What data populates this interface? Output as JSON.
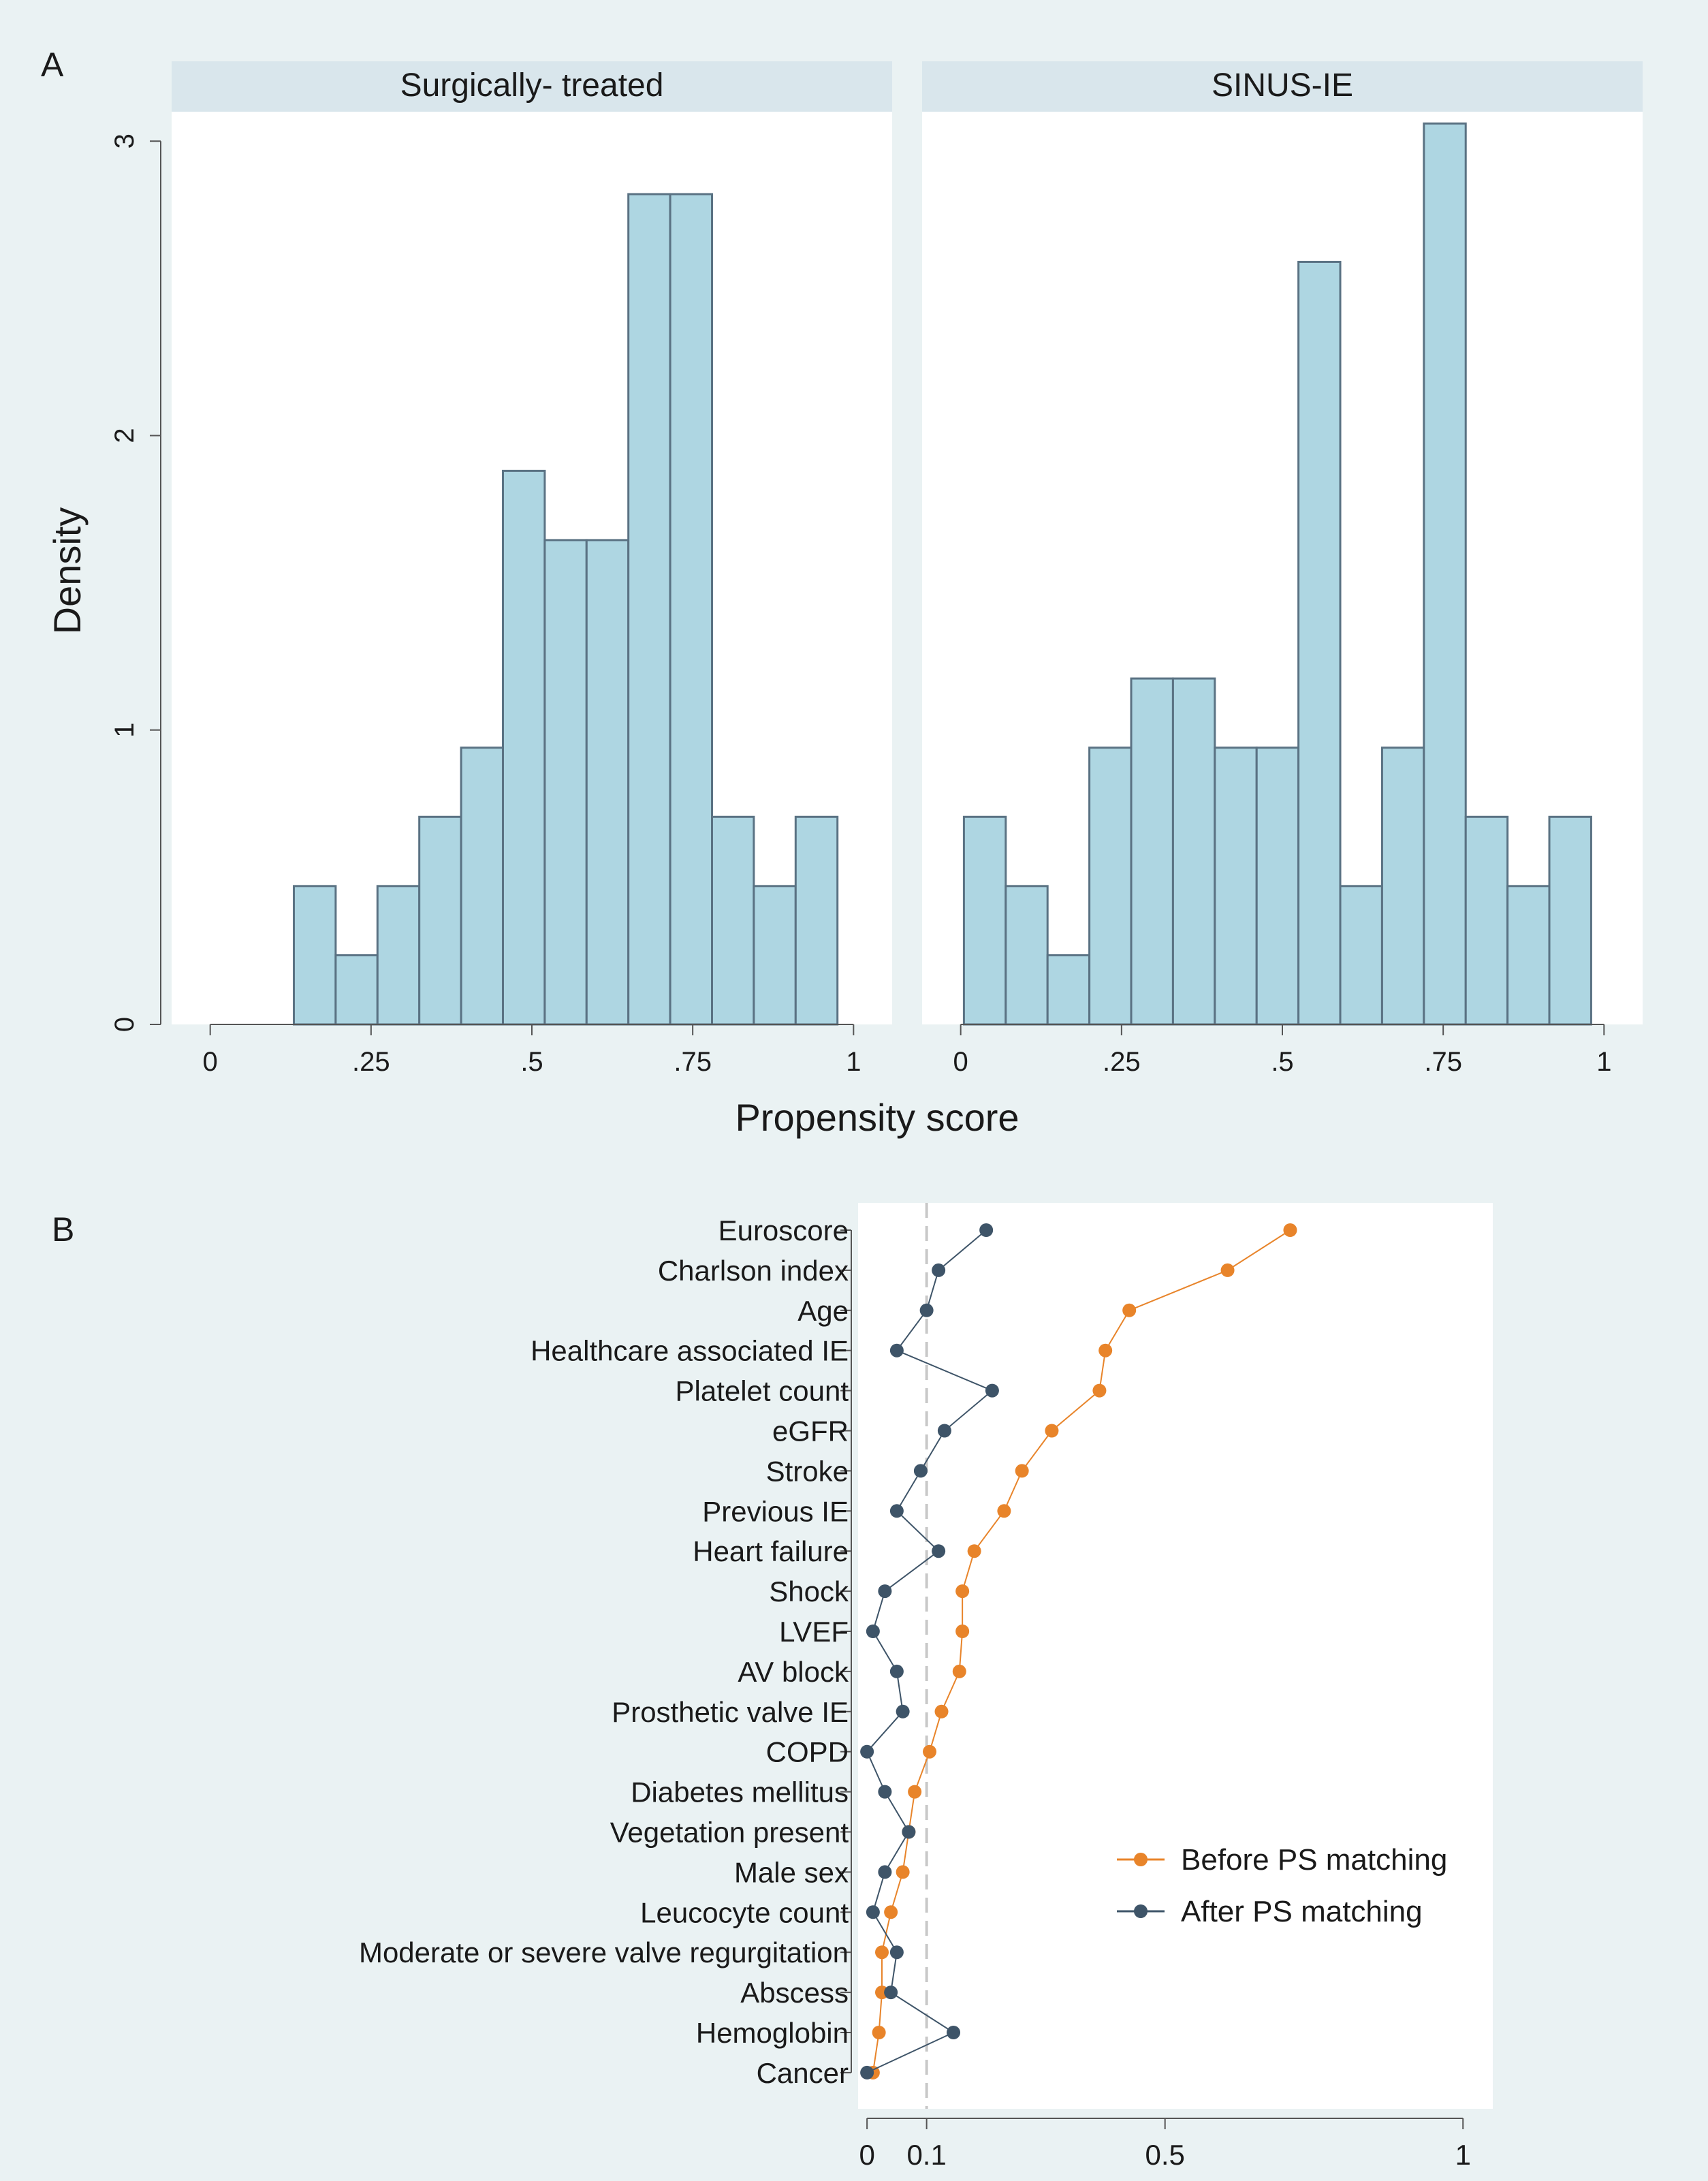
{
  "figure": {
    "panel_a_letter": "A",
    "panel_b_letter": "B",
    "colors": {
      "background": "#eaf2f3",
      "plot_bg": "#ffffff",
      "strip_bg": "#d9e6ec",
      "bar_fill": "#aed6e2",
      "bar_stroke": "#5a7283",
      "axis": "#555555",
      "before": "#e8842a",
      "after": "#3e5468",
      "ref_line": "#c8c8c8"
    }
  },
  "chart_data": [
    {
      "type": "histogram",
      "panel": "A",
      "ylabel": "Density",
      "xlabel": "Propensity score",
      "ylim": [
        0,
        3.1
      ],
      "xlim": [
        -0.06,
        1.06
      ],
      "yticks": [
        0,
        1,
        2,
        3
      ],
      "ytick_labels": [
        "0",
        "1",
        "2",
        "3"
      ],
      "xticks": [
        0,
        0.25,
        0.5,
        0.75,
        1
      ],
      "xtick_labels": [
        "0",
        ".25",
        ".5",
        ".75",
        "1"
      ],
      "facets": [
        {
          "title": "Surgically- treated",
          "bins": [
            {
              "x0": 0.13,
              "x1": 0.195,
              "density": 0.47
            },
            {
              "x0": 0.195,
              "x1": 0.26,
              "density": 0.235
            },
            {
              "x0": 0.26,
              "x1": 0.325,
              "density": 0.47
            },
            {
              "x0": 0.325,
              "x1": 0.39,
              "density": 0.705
            },
            {
              "x0": 0.39,
              "x1": 0.455,
              "density": 0.94
            },
            {
              "x0": 0.455,
              "x1": 0.52,
              "density": 1.88
            },
            {
              "x0": 0.52,
              "x1": 0.585,
              "density": 1.645
            },
            {
              "x0": 0.585,
              "x1": 0.65,
              "density": 1.645
            },
            {
              "x0": 0.65,
              "x1": 0.715,
              "density": 2.82
            },
            {
              "x0": 0.715,
              "x1": 0.78,
              "density": 2.82
            },
            {
              "x0": 0.78,
              "x1": 0.845,
              "density": 0.705
            },
            {
              "x0": 0.845,
              "x1": 0.91,
              "density": 0.47
            },
            {
              "x0": 0.91,
              "x1": 0.975,
              "density": 0.705
            }
          ]
        },
        {
          "title": "SINUS-IE",
          "bins": [
            {
              "x0": 0.005,
              "x1": 0.07,
              "density": 0.705
            },
            {
              "x0": 0.07,
              "x1": 0.135,
              "density": 0.47
            },
            {
              "x0": 0.135,
              "x1": 0.2,
              "density": 0.235
            },
            {
              "x0": 0.2,
              "x1": 0.265,
              "density": 0.94
            },
            {
              "x0": 0.265,
              "x1": 0.33,
              "density": 1.175
            },
            {
              "x0": 0.33,
              "x1": 0.395,
              "density": 1.175
            },
            {
              "x0": 0.395,
              "x1": 0.46,
              "density": 0.94
            },
            {
              "x0": 0.46,
              "x1": 0.525,
              "density": 0.94
            },
            {
              "x0": 0.525,
              "x1": 0.59,
              "density": 2.59
            },
            {
              "x0": 0.59,
              "x1": 0.655,
              "density": 0.47
            },
            {
              "x0": 0.655,
              "x1": 0.72,
              "density": 0.94
            },
            {
              "x0": 0.72,
              "x1": 0.785,
              "density": 3.06
            },
            {
              "x0": 0.785,
              "x1": 0.85,
              "density": 0.705
            },
            {
              "x0": 0.85,
              "x1": 0.915,
              "density": 0.47
            },
            {
              "x0": 0.915,
              "x1": 0.98,
              "density": 0.705
            }
          ]
        }
      ]
    },
    {
      "type": "dot",
      "panel": "B",
      "xlim": [
        -0.015,
        1.05
      ],
      "xticks": [
        0,
        0.1,
        0.5,
        1
      ],
      "xtick_labels": [
        "0",
        "0.1",
        "0.5",
        "1"
      ],
      "reference_line": 0.1,
      "legend_position": "right",
      "categories": [
        "Euroscore",
        "Charlson index",
        "Age",
        "Healthcare associated IE",
        "Platelet count",
        "eGFR",
        "Stroke",
        "Previous IE",
        "Heart failure",
        "Shock",
        "LVEF",
        "AV block",
        "Prosthetic valve IE",
        "COPD",
        "Diabetes mellitus",
        "Vegetation present",
        "Male sex",
        "Leucocyte count",
        "Moderate or severe valve regurgitation",
        "Abscess",
        "Hemoglobin",
        "Cancer"
      ],
      "series": [
        {
          "name": "Before PS matching",
          "color": "#e8842a",
          "values": [
            0.71,
            0.605,
            0.44,
            0.4,
            0.39,
            0.31,
            0.26,
            0.23,
            0.18,
            0.16,
            0.16,
            0.155,
            0.125,
            0.105,
            0.08,
            0.07,
            0.06,
            0.04,
            0.025,
            0.025,
            0.02,
            0.01
          ]
        },
        {
          "name": "After PS matching",
          "color": "#3e5468",
          "values": [
            0.2,
            0.12,
            0.1,
            0.05,
            0.21,
            0.13,
            0.09,
            0.05,
            0.12,
            0.03,
            0.01,
            0.05,
            0.06,
            0.0,
            0.03,
            0.07,
            0.03,
            0.01,
            0.05,
            0.04,
            0.145,
            0.0
          ]
        }
      ]
    }
  ]
}
